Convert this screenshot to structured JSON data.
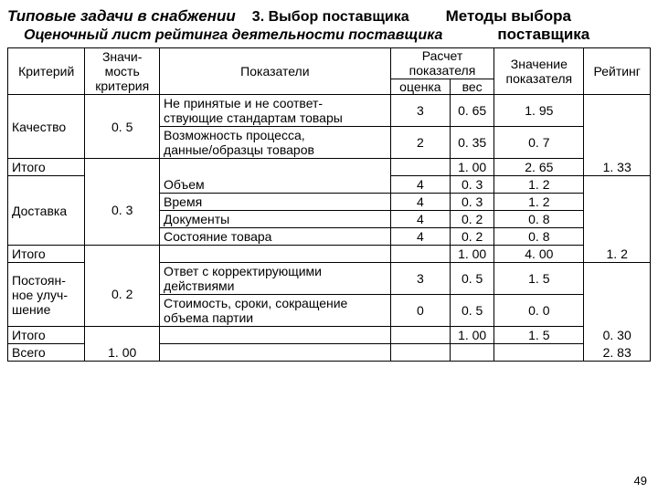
{
  "header": {
    "typical": "Типовые задачи в снабжении",
    "selection": "3. Выбор поставщика",
    "methods": "Методы выбора",
    "evalSheet": "Оценочный лист рейтинга деятельности поставщика",
    "supplier": "поставщика"
  },
  "th": {
    "criterion": "Критерий",
    "significance1": "Значи-",
    "significance2": "мость",
    "significance3": "критерия",
    "indicators": "Показатели",
    "calc": "Расчет",
    "calc2": "показателя",
    "score": "оценка",
    "weight": "вес",
    "value1": "Значение",
    "value2": "показателя",
    "rating": "Рейтинг"
  },
  "crit": {
    "quality": "Качество",
    "delivery": "Доставка",
    "improve1": "Постоян-",
    "improve2": "ное улуч-",
    "improve3": "шение",
    "total": "Итого",
    "grand": "Всего"
  },
  "ind": {
    "q1a": "Не принятые и не соответ-",
    "q1b": "ствующие стандартам товары",
    "q2a": "Возможность процесса,",
    "q2b": "данные/образцы товаров",
    "d1": "Объем",
    "d2": "Время",
    "d3": "Документы",
    "d4": "Состояние товара",
    "i1a": "Ответ с корректирующими",
    "i1b": "действиями",
    "i2a": "Стоимость, сроки, сокращение",
    "i2b": "объема партии"
  },
  "v": {
    "w_q": "0. 5",
    "w_d": "0. 3",
    "w_i": "0. 2",
    "w_sum": "1. 00",
    "q1_s": "3",
    "q1_w": "0. 65",
    "q1_v": "1. 95",
    "q2_s": "2",
    "q2_w": "0. 35",
    "q2_v": "0. 7",
    "qt_w": "1. 00",
    "qt_v": "2. 65",
    "qt_r": "1. 33",
    "d1_s": "4",
    "d1_w": "0. 3",
    "d1_v": "1. 2",
    "d2_s": "4",
    "d2_w": "0. 3",
    "d2_v": "1. 2",
    "d3_s": "4",
    "d3_w": "0. 2",
    "d3_v": "0. 8",
    "d4_s": "4",
    "d4_w": "0. 2",
    "d4_v": "0. 8",
    "dt_w": "1. 00",
    "dt_v": "4. 00",
    "dt_r": "1. 2",
    "i1_s": "3",
    "i1_w": "0. 5",
    "i1_v": "1. 5",
    "i2_s": "0",
    "i2_w": "0. 5",
    "i2_v": "0. 0",
    "it_w": "1. 00",
    "it_v": "1. 5",
    "it_r": "0. 30",
    "gr_r": "2. 83"
  },
  "page": "49"
}
